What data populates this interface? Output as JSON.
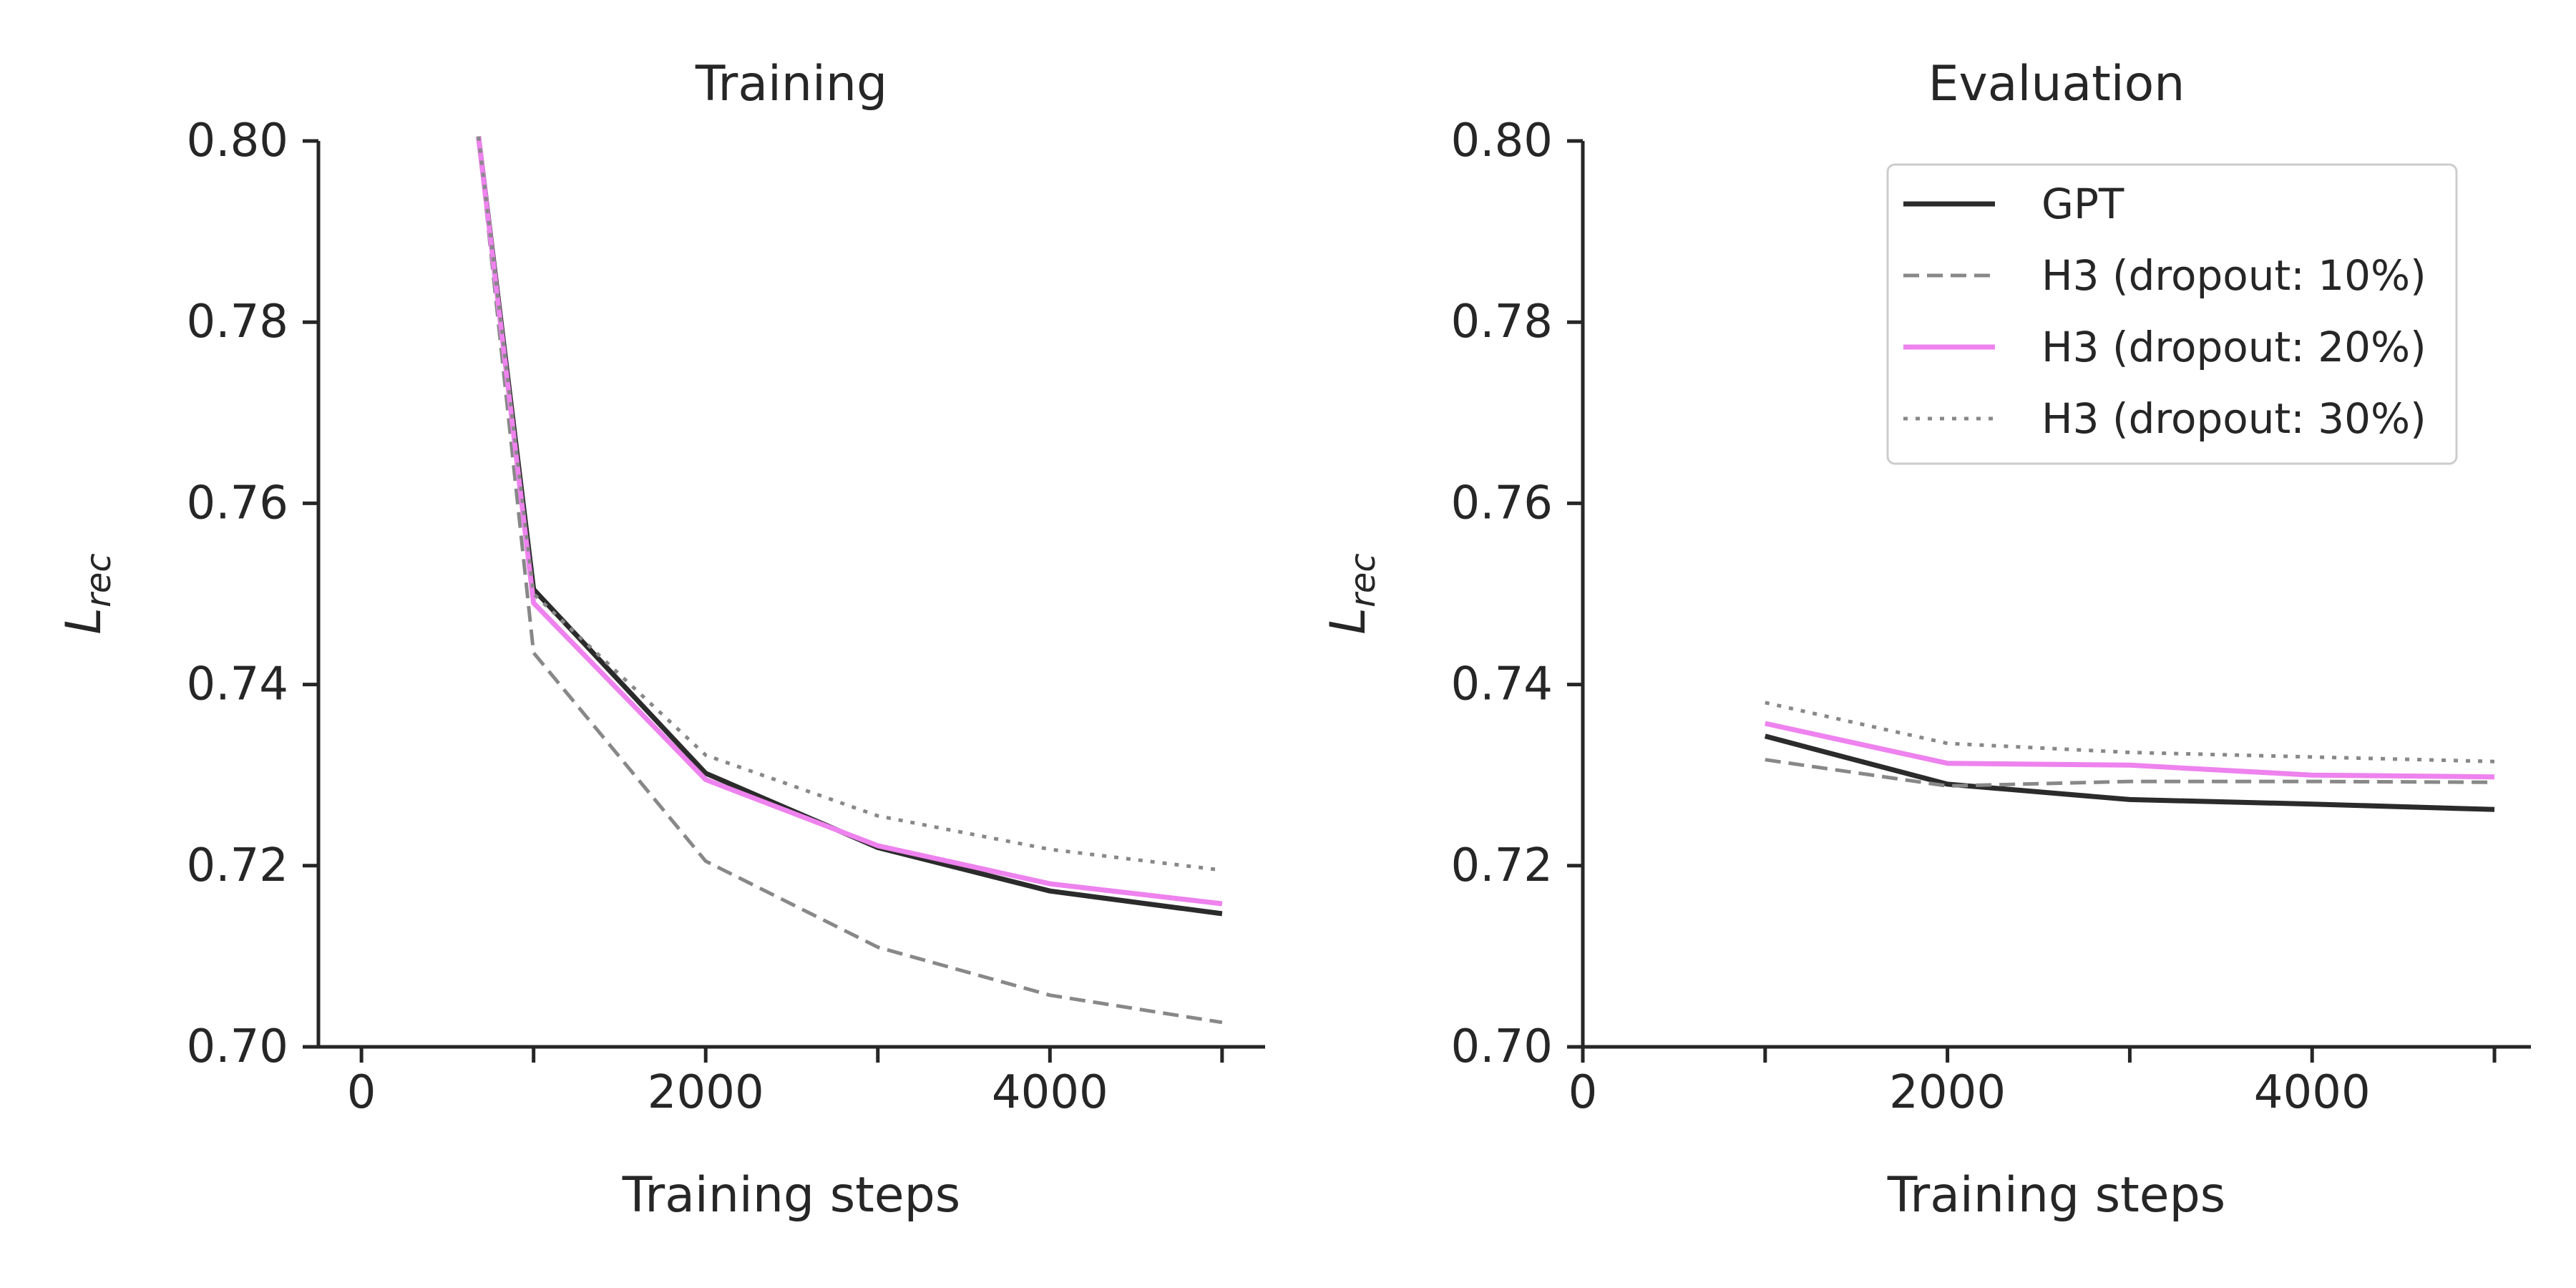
{
  "chart_data": [
    {
      "type": "line",
      "title": "Training",
      "xlabel": "Training steps",
      "ylabel": "L",
      "ylabel_sub": "rec",
      "xlim": [
        -250,
        5250
      ],
      "ylim": [
        0.7,
        0.8
      ],
      "xticks": [
        0,
        1000,
        2000,
        3000,
        4000,
        5000
      ],
      "xtick_labels": [
        "0",
        "",
        "2000",
        "",
        "4000",
        ""
      ],
      "yticks": [
        0.7,
        0.72,
        0.74,
        0.76,
        0.78,
        0.8
      ],
      "ytick_labels": [
        "0.70",
        "0.72",
        "0.74",
        "0.76",
        "0.78",
        "0.80"
      ],
      "legend": null,
      "series": [
        {
          "name": "GPT",
          "color": "#2b2b2b",
          "dash": "solid",
          "x": [
            680,
            1000,
            2000,
            3000,
            4000,
            5000
          ],
          "y": [
            0.8005,
            0.7505,
            0.7302,
            0.722,
            0.7172,
            0.7147
          ]
        },
        {
          "name": "H3 (dropout: 10%)",
          "color": "#888888",
          "dash": "dashed",
          "x": [
            680,
            1000,
            2000,
            3000,
            4000,
            5000
          ],
          "y": [
            0.8005,
            0.7435,
            0.7205,
            0.711,
            0.7057,
            0.7027
          ]
        },
        {
          "name": "H3 (dropout: 20%)",
          "color": "#ee82ee",
          "dash": "solid",
          "x": [
            680,
            1000,
            2000,
            3000,
            4000,
            5000
          ],
          "y": [
            0.8005,
            0.749,
            0.7295,
            0.7222,
            0.718,
            0.7158
          ]
        },
        {
          "name": "H3 (dropout: 30%)",
          "color": "#888888",
          "dash": "dotted",
          "x": [
            680,
            1000,
            2000,
            3000,
            4000,
            5000
          ],
          "y": [
            0.8005,
            0.75,
            0.7322,
            0.7255,
            0.7218,
            0.7195
          ]
        }
      ]
    },
    {
      "type": "line",
      "title": "Evaluation",
      "xlabel": "Training steps",
      "ylabel": "L",
      "ylabel_sub": "rec",
      "xlim": [
        0,
        5200
      ],
      "ylim": [
        0.7,
        0.8
      ],
      "xticks": [
        0,
        1000,
        2000,
        3000,
        4000,
        5000
      ],
      "xtick_labels": [
        "0",
        "",
        "2000",
        "",
        "4000",
        ""
      ],
      "yticks": [
        0.7,
        0.72,
        0.74,
        0.76,
        0.78,
        0.8
      ],
      "ytick_labels": [
        "0.70",
        "0.72",
        "0.74",
        "0.76",
        "0.78",
        "0.80"
      ],
      "legend": "top-right",
      "series": [
        {
          "name": "GPT",
          "color": "#2b2b2b",
          "dash": "solid",
          "x": [
            1000,
            2000,
            3000,
            4000,
            5000
          ],
          "y": [
            0.7343,
            0.729,
            0.7273,
            0.7268,
            0.7262
          ]
        },
        {
          "name": "H3 (dropout: 10%)",
          "color": "#888888",
          "dash": "dashed",
          "x": [
            1000,
            2000,
            3000,
            4000,
            5000
          ],
          "y": [
            0.7317,
            0.7288,
            0.7293,
            0.7293,
            0.7292
          ]
        },
        {
          "name": "H3 (dropout: 20%)",
          "color": "#ee82ee",
          "dash": "solid",
          "x": [
            1000,
            2000,
            3000,
            4000,
            5000
          ],
          "y": [
            0.7357,
            0.7313,
            0.7311,
            0.73,
            0.7298
          ]
        },
        {
          "name": "H3 (dropout: 30%)",
          "color": "#888888",
          "dash": "dotted",
          "x": [
            1000,
            2000,
            3000,
            4000,
            5000
          ],
          "y": [
            0.738,
            0.7335,
            0.7325,
            0.732,
            0.7315
          ]
        }
      ]
    }
  ]
}
